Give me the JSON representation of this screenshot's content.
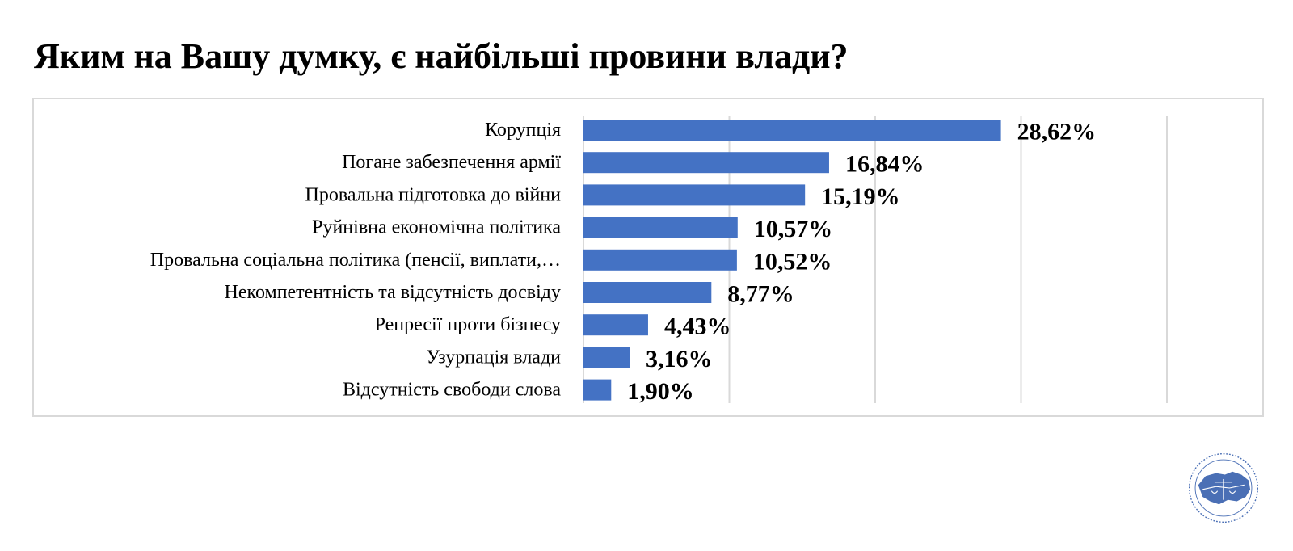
{
  "title": "Яким на Вашу думку, є найбільші провини влади?",
  "colors": {
    "bar": "#4472c4",
    "grid": "#d9d9d9",
    "text": "#000000"
  },
  "logo": {
    "icon": "organization-seal-logo"
  },
  "chart_data": {
    "type": "bar",
    "orientation": "horizontal",
    "categories": [
      "Корупція",
      "Погане забезпечення армії",
      "Провальна підготовка до війни",
      "Руйнівна економічна політика",
      "Провальна соціальна політика (пенсії, виплати,…",
      "Некомпетентність та відсутність досвіду",
      "Репресії проти бізнесу",
      "Узурпація влади",
      "Відсутність свободи слова"
    ],
    "values": [
      28.62,
      16.84,
      15.19,
      10.57,
      10.52,
      8.77,
      4.43,
      3.16,
      1.9
    ],
    "data_labels": [
      "28,62%",
      "16,84%",
      "15,19%",
      "10,57%",
      "10,52%",
      "8,77%",
      "4,43%",
      "3,16%",
      "1,90%"
    ],
    "xlim": [
      0,
      40
    ],
    "grid": true,
    "legend": "none"
  }
}
